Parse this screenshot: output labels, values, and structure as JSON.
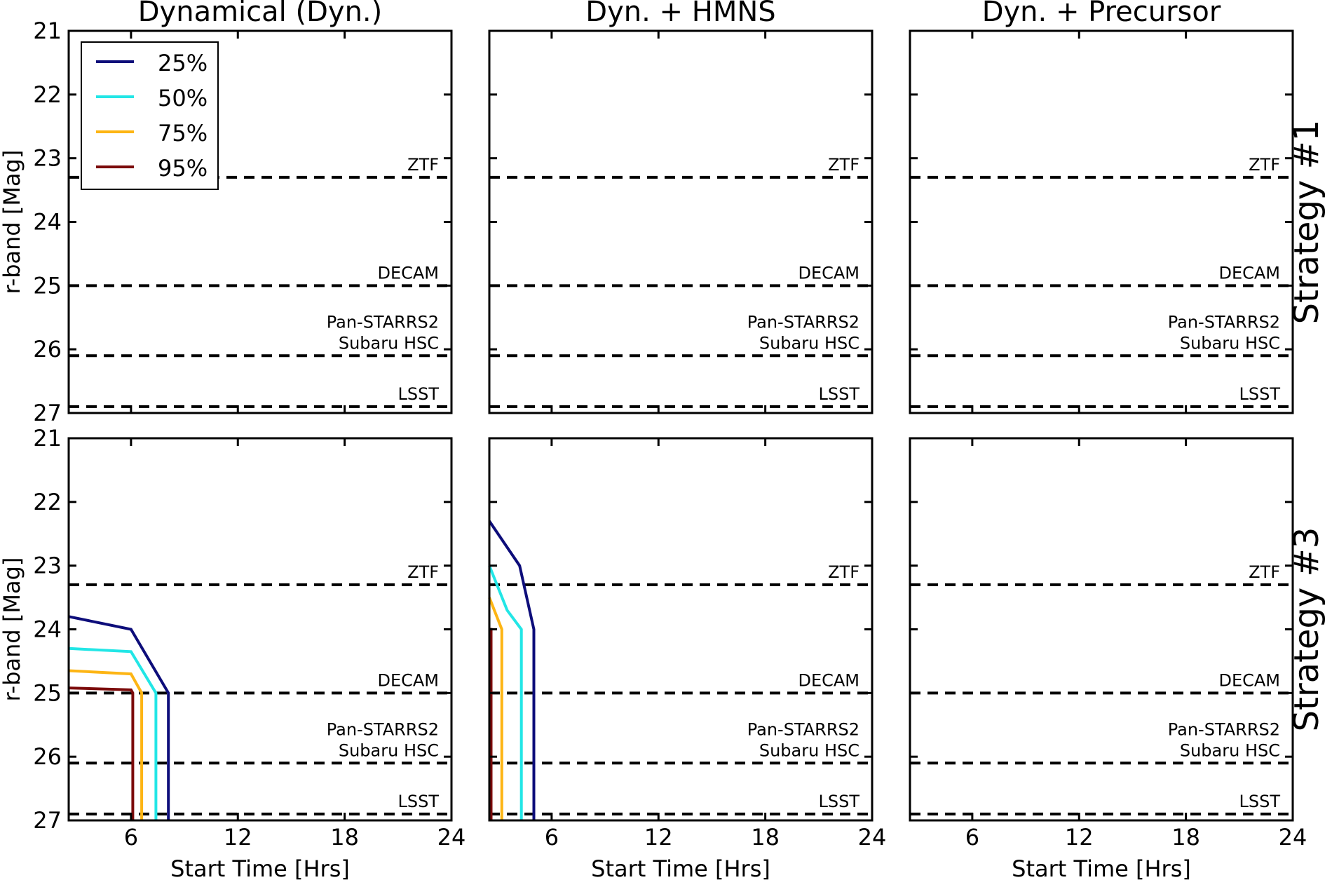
{
  "chart_data": {
    "type": "line",
    "panels": [
      {
        "title": "Dynamical (Dyn.)",
        "row_label": "",
        "series": []
      },
      {
        "title": "Dyn. + HMNS",
        "row_label": "",
        "series": []
      },
      {
        "title": "Dyn. + Precursor",
        "row_label": "Strategy #1",
        "series": []
      },
      {
        "title": "",
        "row_label": "",
        "series": [
          {
            "name": "25%",
            "points": [
              [
                2.5,
                23.8
              ],
              [
                6.0,
                24.0
              ],
              [
                8.1,
                25.0
              ],
              [
                8.1,
                27.0
              ]
            ]
          },
          {
            "name": "50%",
            "points": [
              [
                2.5,
                24.3
              ],
              [
                6.0,
                24.35
              ],
              [
                7.4,
                25.0
              ],
              [
                7.4,
                27.0
              ]
            ]
          },
          {
            "name": "75%",
            "points": [
              [
                2.5,
                24.65
              ],
              [
                6.0,
                24.7
              ],
              [
                6.6,
                25.0
              ],
              [
                6.6,
                27.0
              ]
            ]
          },
          {
            "name": "95%",
            "points": [
              [
                2.5,
                24.92
              ],
              [
                6.0,
                24.95
              ],
              [
                6.1,
                25.0
              ],
              [
                6.1,
                27.0
              ]
            ]
          }
        ]
      },
      {
        "title": "",
        "row_label": "",
        "series": [
          {
            "name": "25%",
            "points": [
              [
                2.5,
                22.3
              ],
              [
                4.2,
                23.0
              ],
              [
                5.0,
                24.0
              ],
              [
                5.0,
                27.0
              ]
            ]
          },
          {
            "name": "50%",
            "points": [
              [
                2.5,
                23.0
              ],
              [
                3.5,
                23.7
              ],
              [
                4.3,
                24.0
              ],
              [
                4.3,
                27.0
              ]
            ]
          },
          {
            "name": "75%",
            "points": [
              [
                2.5,
                23.5
              ],
              [
                3.2,
                24.0
              ],
              [
                3.2,
                27.0
              ]
            ]
          },
          {
            "name": "95%",
            "points": [
              [
                2.5,
                24.0
              ],
              [
                2.6,
                24.0
              ],
              [
                2.6,
                27.0
              ]
            ]
          }
        ]
      },
      {
        "title": "",
        "row_label": "Strategy #3",
        "series": []
      }
    ],
    "series_names": [
      "25%",
      "50%",
      "75%",
      "95%"
    ],
    "series_colors": [
      "#0d0d7a",
      "#22e6e6",
      "#fdb514",
      "#7b0a0a"
    ],
    "reference_lines": [
      {
        "name": "ZTF",
        "value": 23.3
      },
      {
        "name": "DECAM",
        "value": 25.0
      },
      {
        "name": "Pan-STARRS2",
        "value": 25.0
      },
      {
        "name": "Subaru HSC",
        "value": 26.1
      },
      {
        "name": "LSST",
        "value": 26.9
      }
    ],
    "xlabel": "Start Time [Hrs]",
    "ylabel": "r-band [Mag]",
    "xlim": [
      2.5,
      24
    ],
    "ylim": [
      21,
      27
    ],
    "y_inverted": true,
    "yticks": [
      "21",
      "22",
      "23",
      "24",
      "25",
      "26",
      "27"
    ],
    "xticks_first": [
      "6",
      "12",
      "18",
      "24"
    ],
    "xticks_other": [
      "6",
      "12",
      "18",
      "24"
    ],
    "legend_position": "upper-left"
  }
}
